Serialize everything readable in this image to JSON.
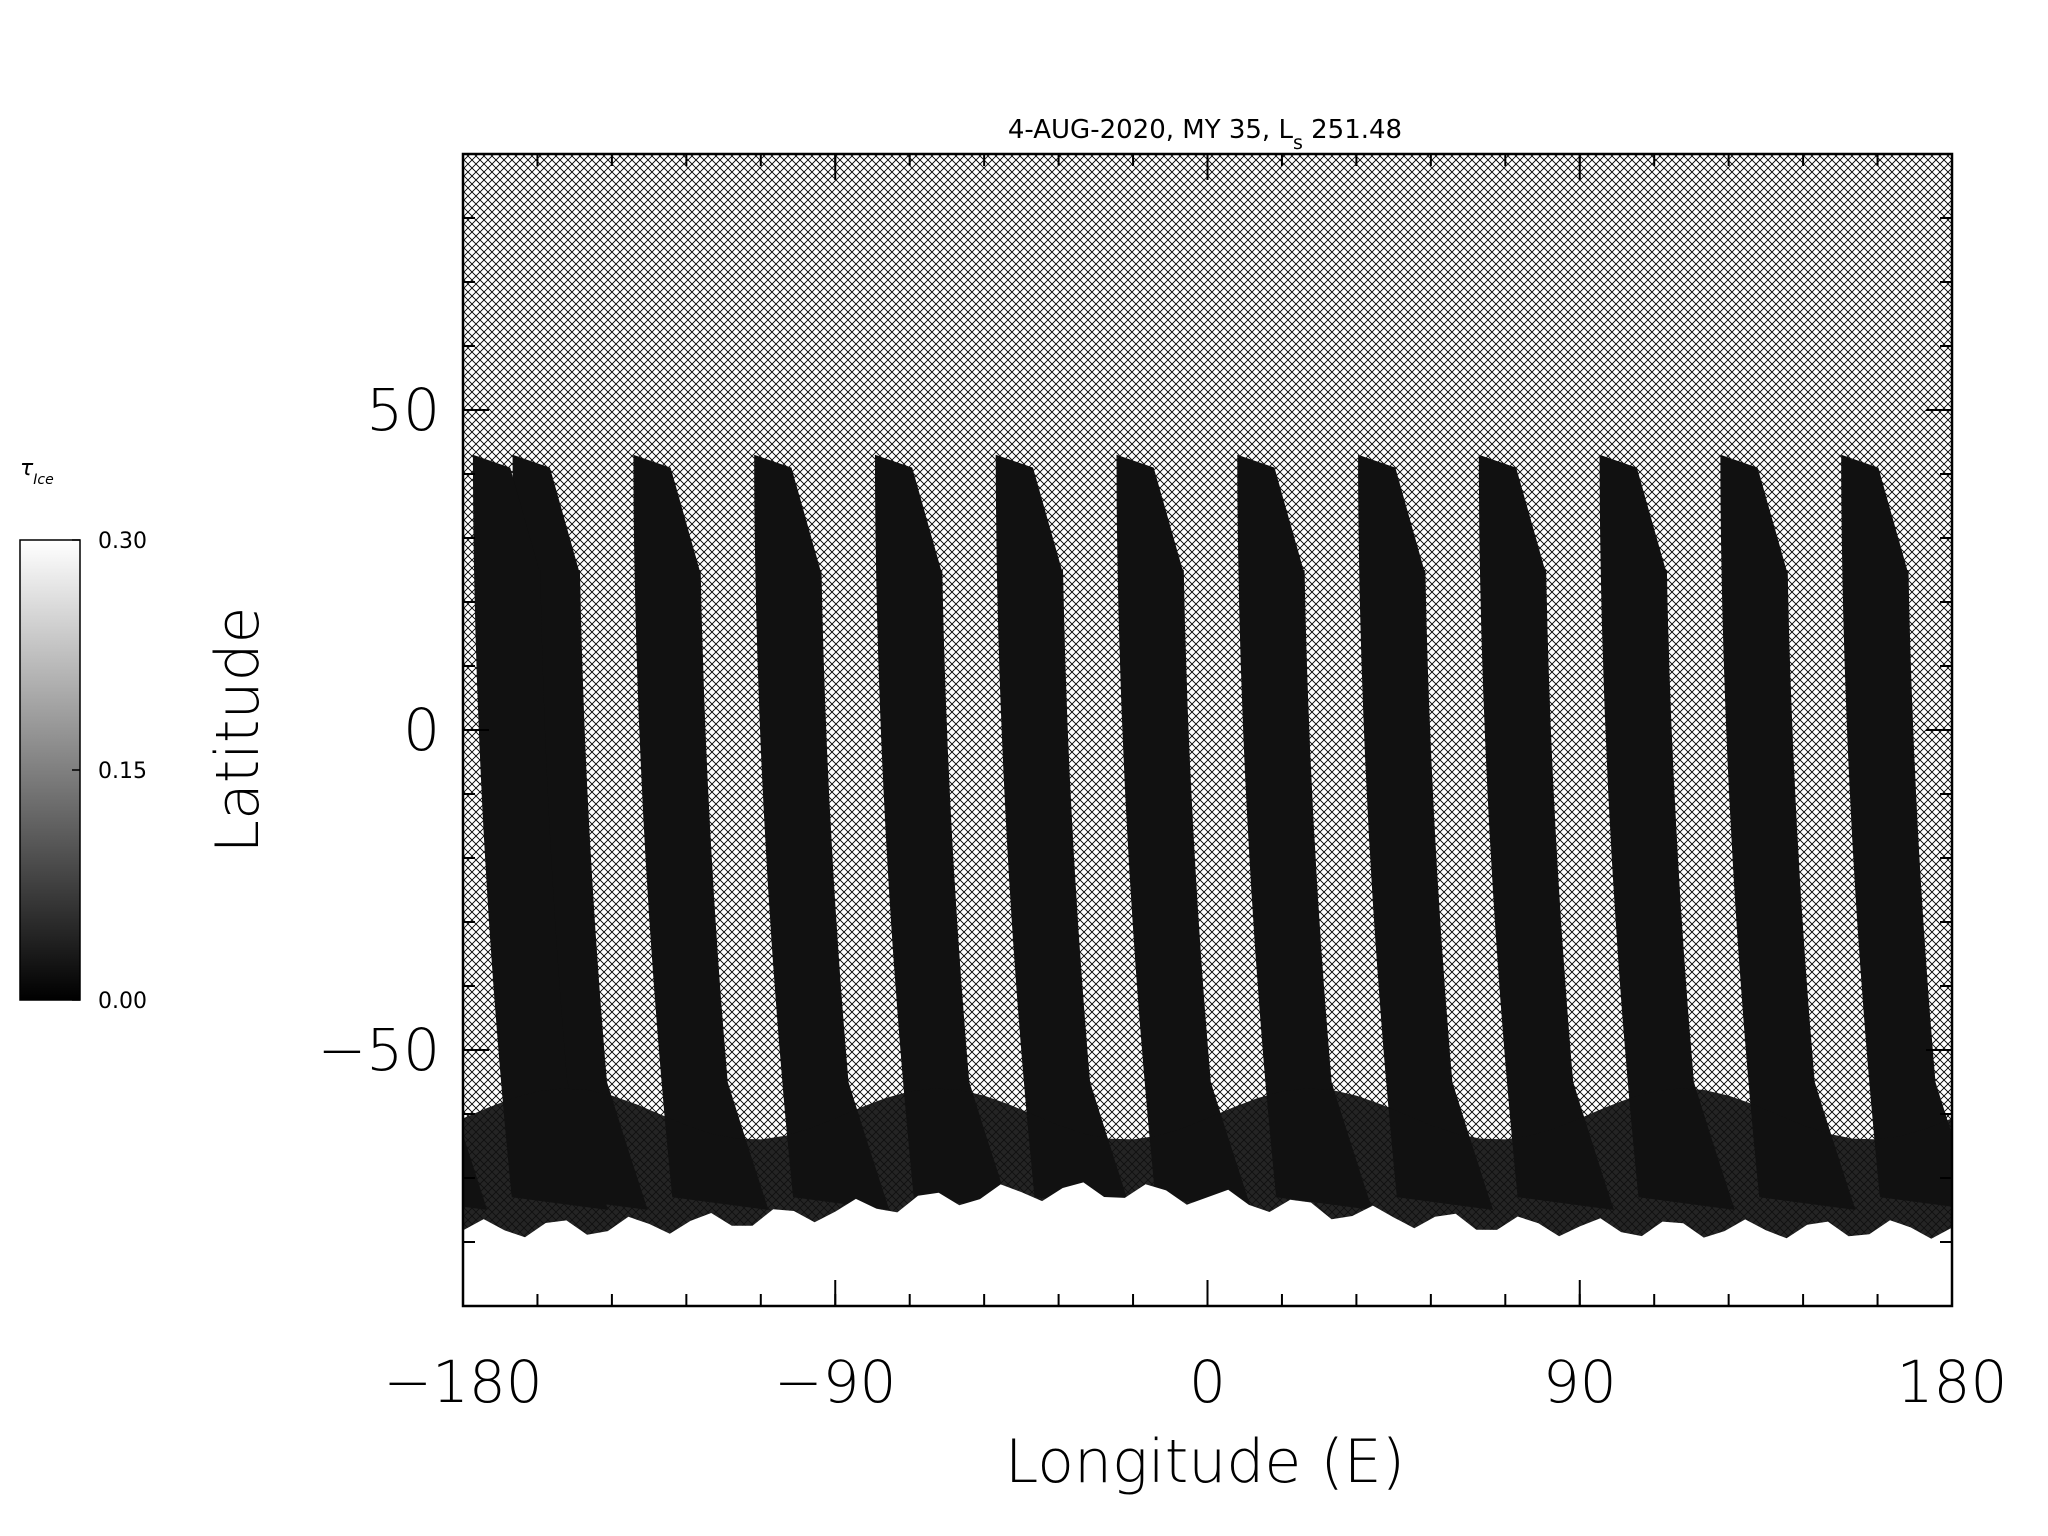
{
  "chart_data": {
    "type": "heatmap",
    "title": "4-AUG-2020, MY 35,  L",
    "title_subscript": "s",
    "title_suffix": " 251.48",
    "xlabel": "Longitude (E)",
    "ylabel": "Latitude",
    "xlim": [
      -180,
      180
    ],
    "ylim": [
      -90,
      90
    ],
    "xticks": [
      -180,
      -90,
      0,
      90,
      180
    ],
    "xtick_labels": [
      "−180",
      "−90",
      "0",
      "90",
      "180"
    ],
    "yticks": [
      -50,
      0,
      50
    ],
    "ytick_labels": [
      "−50",
      "0",
      "50"
    ],
    "x_minor_step": 18,
    "y_minor_step": 10,
    "grid": false,
    "colorbar": {
      "label_main": "τ",
      "label_sub": "Ice",
      "min": 0.0,
      "max": 0.3,
      "ticks": [
        0.0,
        0.15,
        0.3
      ],
      "tick_labels": [
        "0.00",
        "0.15",
        "0.30"
      ],
      "colormap": "grayscale",
      "color_min": "#000000",
      "color_max": "#ffffff"
    },
    "no_data_pattern": "cross-hatch",
    "swath_count": 13,
    "swath_spacing_deg": 29.2,
    "swath_max_latitude": 43,
    "swath_typical_value": 0.02,
    "polar_region": {
      "lat_max": -72,
      "value": 0.3
    },
    "colors": {
      "swath": "#151515",
      "polar_ice": "#f8f8f8",
      "hatch": "#000000",
      "background": "#ffffff"
    }
  }
}
